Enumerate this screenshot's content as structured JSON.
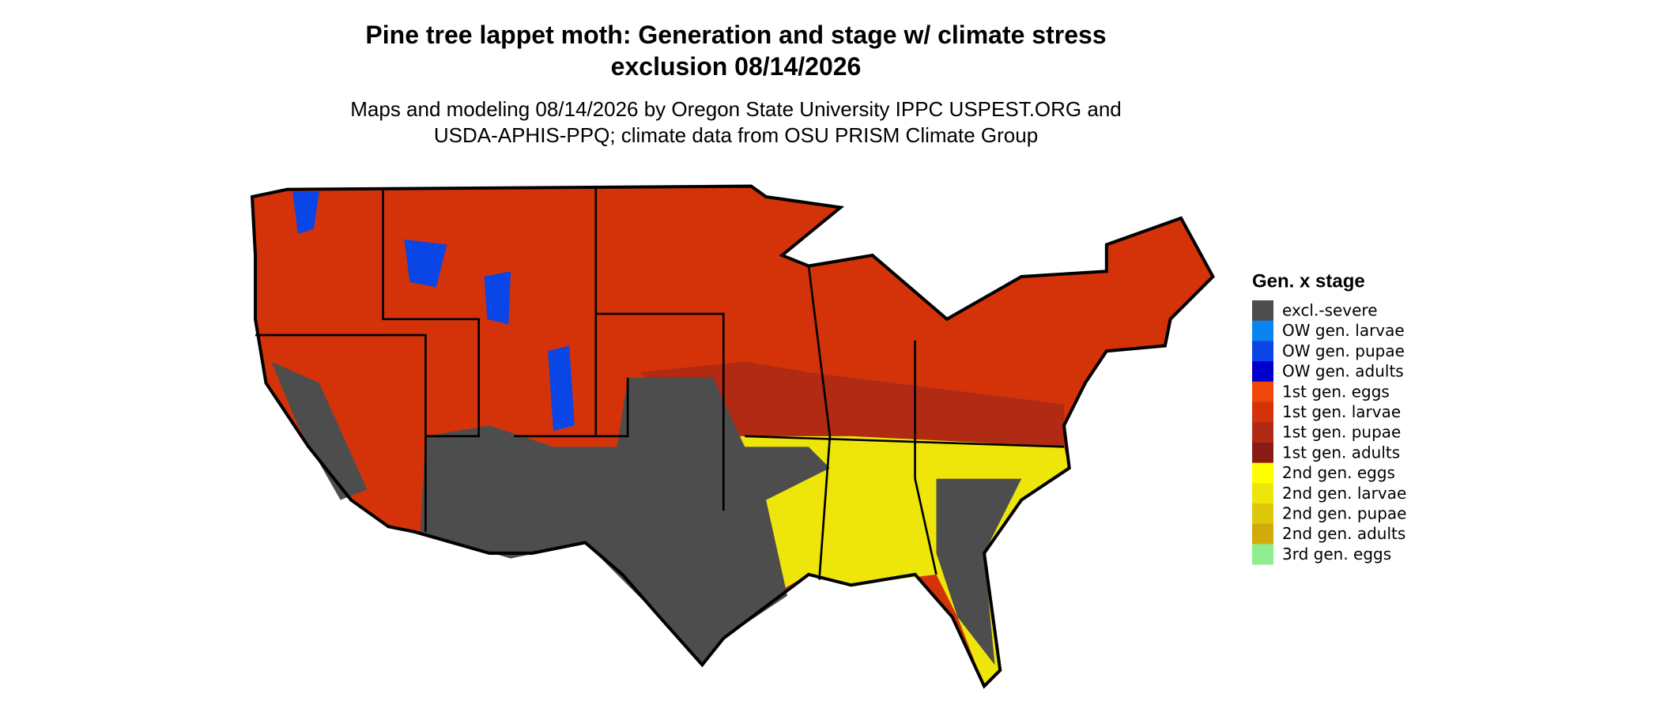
{
  "title": "Pine tree lappet moth: Generation and stage w/ climate stress exclusion 08/14/2026",
  "subtitle": "Maps and modeling 08/14/2026 by Oregon State University IPPC USPEST.ORG and USDA-APHIS-PPQ; climate data from OSU PRISM Climate Group",
  "legend": {
    "title": "Gen. x stage",
    "items": [
      {
        "label": "excl.-severe",
        "color": "#4d4d4d"
      },
      {
        "label": "OW gen. larvae",
        "color": "#0a84f0"
      },
      {
        "label": "OW gen. pupae",
        "color": "#0a46e6"
      },
      {
        "label": "OW gen. adults",
        "color": "#0000cc"
      },
      {
        "label": "1st gen. eggs",
        "color": "#f0460a"
      },
      {
        "label": "1st gen. larvae",
        "color": "#d4330a"
      },
      {
        "label": "1st gen. pupae",
        "color": "#b02a14"
      },
      {
        "label": "1st gen. adults",
        "color": "#8a1a14"
      },
      {
        "label": "2nd gen. eggs",
        "color": "#ffff00"
      },
      {
        "label": "2nd gen. larvae",
        "color": "#eee60a"
      },
      {
        "label": "2nd gen. pupae",
        "color": "#ddc80a"
      },
      {
        "label": "2nd gen. adults",
        "color": "#d2aa0a"
      },
      {
        "label": "3rd gen. eggs",
        "color": "#90ee90"
      }
    ]
  }
}
